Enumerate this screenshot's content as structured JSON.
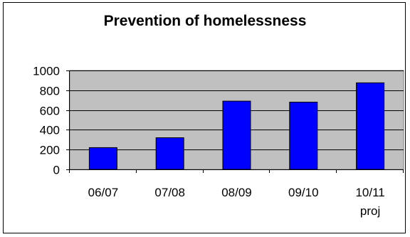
{
  "chart_data": {
    "type": "bar",
    "title": "Prevention of homelessness",
    "xlabel": "",
    "ylabel": "",
    "categories": [
      [
        "06/07"
      ],
      [
        "07/08"
      ],
      [
        "08/09"
      ],
      [
        "09/10"
      ],
      [
        "10/11",
        "proj"
      ]
    ],
    "values": [
      220,
      320,
      690,
      680,
      875
    ],
    "ylim": [
      0,
      1000
    ],
    "yticks": [
      "0",
      "200",
      "400",
      "600",
      "800",
      "1000"
    ],
    "ytick_values": [
      0,
      200,
      400,
      600,
      800,
      1000
    ],
    "grid": true,
    "legend": false,
    "colors": {
      "bar": "#0000ff",
      "plot_bg": "#c0c0c0",
      "gridline": "#000000"
    }
  }
}
